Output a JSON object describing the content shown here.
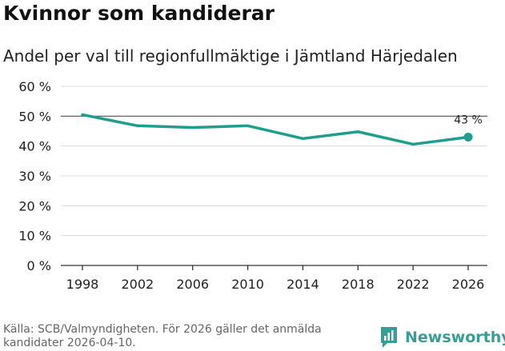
{
  "header": {
    "title": "Kvinnor som kandiderar",
    "subtitle": "Andel per val till regionfullmäktige i Jämtland Härjedalen"
  },
  "chart_data": {
    "type": "line",
    "x": [
      1998,
      2002,
      2006,
      2010,
      2014,
      2018,
      2022,
      2026
    ],
    "series": [
      {
        "name": "Andel kvinnor",
        "values": [
          50.5,
          46.8,
          46.2,
          46.8,
          42.5,
          44.8,
          40.6,
          43.0
        ]
      }
    ],
    "ylim": [
      0,
      60
    ],
    "yticks": [
      0,
      10,
      20,
      30,
      40,
      50,
      60
    ],
    "ytick_labels": [
      "0 %",
      "10 %",
      "20 %",
      "30 %",
      "40 %",
      "50 %",
      "60 %"
    ],
    "xtick_labels": [
      "1998",
      "2002",
      "2006",
      "2010",
      "2014",
      "2018",
      "2022",
      "2026"
    ],
    "reference_line": 50,
    "end_label": "43 %",
    "colors": {
      "line": "#1f9e8e",
      "grid": "#dddddd",
      "reference": "#555555",
      "axis": "#333333"
    }
  },
  "footer": {
    "source": "Källa: SCB/Valmyndigheten. För 2026 gäller det anmälda kandidater 2026-04-10.",
    "brand": "Newsworthy"
  }
}
